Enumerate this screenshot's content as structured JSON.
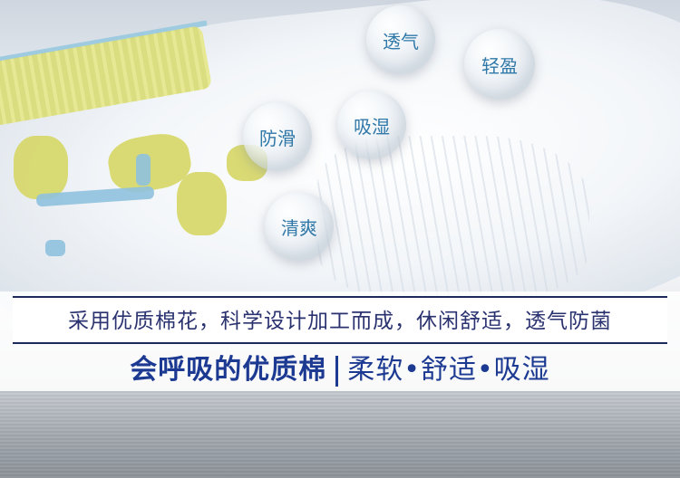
{
  "bubbles": {
    "breathable": "透气",
    "light": "轻盈",
    "anti_slip": "防滑",
    "absorbent": "吸湿",
    "fresh": "清爽"
  },
  "banner": {
    "caption": "采用优质棉花，科学设计加工而成，休闲舒适，透气防菌",
    "slogan_main": "会呼吸的优质棉",
    "slogan_features": "柔软•舒适•吸湿"
  },
  "colors": {
    "sock_yellow": "#d7d86d",
    "sock_blue": "#8fc1de",
    "text_blue": "#2f78a8",
    "slogan_blue": "#1d3a92"
  }
}
